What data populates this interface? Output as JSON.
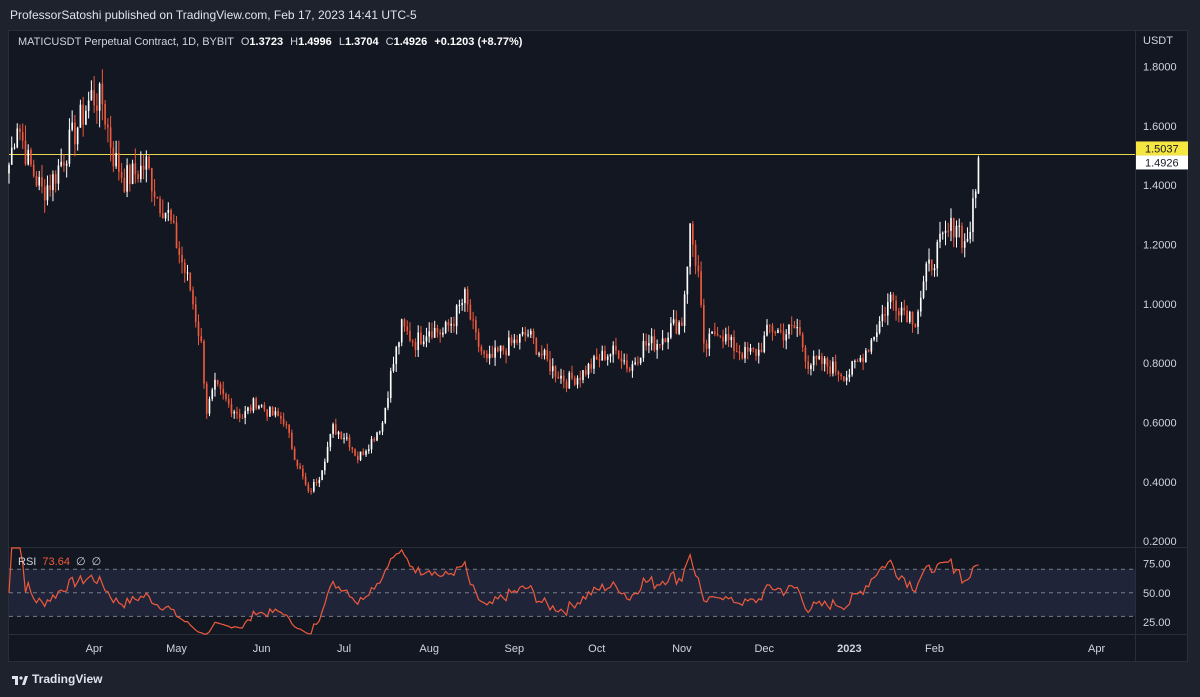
{
  "header": {
    "publisher_line": "ProfessorSatoshi published on TradingView.com, Feb 17, 2023 14:41 UTC-5"
  },
  "legend": {
    "symbol": "MATICUSDT Perpetual Contract, 1D, BYBIT",
    "open_label": "O",
    "open": "1.3723",
    "high_label": "H",
    "high": "1.4996",
    "low_label": "L",
    "low": "1.3704",
    "close_label": "C",
    "close": "1.4926",
    "change": "+0.1203 (+8.77%)"
  },
  "rsi_legend": {
    "name": "RSI",
    "value": "73.64",
    "na1": "∅",
    "na2": "∅"
  },
  "footer": {
    "brand": "TradingView"
  },
  "colors": {
    "background": "#131722",
    "panel": "#1e222d",
    "up": "#ffffff",
    "down": "#f05a3c",
    "hline": "#e8d44d",
    "rsi_line": "#f05a3c",
    "rsi_band": "#2a2d4a",
    "grid": "#2a2e39"
  },
  "chart_data": {
    "type": "candlestick",
    "price_axis": {
      "currency": "USDT",
      "ticks": [
        "1.8000",
        "1.6000",
        "1.4000",
        "1.2000",
        "1.0000",
        "0.8000",
        "0.6000",
        "0.4000",
        "0.2000"
      ],
      "range": [
        0.18,
        1.92
      ],
      "price_labels": [
        {
          "value": 1.5037,
          "label": "1.5037",
          "style": "yellow"
        },
        {
          "value": 1.4926,
          "label": "1.4926",
          "style": "white"
        }
      ]
    },
    "horizontal_line": 1.5037,
    "time_axis": {
      "labels": [
        "Apr",
        "May",
        "Jun",
        "Jul",
        "Aug",
        "Sep",
        "Oct",
        "Nov",
        "Dec",
        "2023",
        "Feb",
        "Apr"
      ],
      "label_dates": [
        "2022-04-01",
        "2022-05-01",
        "2022-06-01",
        "2022-07-01",
        "2022-08-01",
        "2022-09-01",
        "2022-10-01",
        "2022-11-01",
        "2022-12-01",
        "2023-01-01",
        "2023-02-01",
        "2023-04-01"
      ],
      "start_date": "2022-03-01",
      "end_date": "2023-04-15"
    },
    "price_keypoints": [
      {
        "date": "2022-03-01",
        "close": 1.47
      },
      {
        "date": "2022-03-04",
        "close": 1.62
      },
      {
        "date": "2022-03-08",
        "close": 1.48
      },
      {
        "date": "2022-03-13",
        "close": 1.38
      },
      {
        "date": "2022-03-17",
        "close": 1.42
      },
      {
        "date": "2022-03-22",
        "close": 1.52
      },
      {
        "date": "2022-03-27",
        "close": 1.62
      },
      {
        "date": "2022-03-31",
        "close": 1.7
      },
      {
        "date": "2022-04-04",
        "close": 1.68
      },
      {
        "date": "2022-04-08",
        "close": 1.5
      },
      {
        "date": "2022-04-12",
        "close": 1.42
      },
      {
        "date": "2022-04-16",
        "close": 1.44
      },
      {
        "date": "2022-04-20",
        "close": 1.47
      },
      {
        "date": "2022-04-24",
        "close": 1.36
      },
      {
        "date": "2022-04-28",
        "close": 1.3
      },
      {
        "date": "2022-05-02",
        "close": 1.17
      },
      {
        "date": "2022-05-06",
        "close": 1.05
      },
      {
        "date": "2022-05-10",
        "close": 0.86
      },
      {
        "date": "2022-05-12",
        "close": 0.64
      },
      {
        "date": "2022-05-15",
        "close": 0.72
      },
      {
        "date": "2022-05-20",
        "close": 0.66
      },
      {
        "date": "2022-05-25",
        "close": 0.62
      },
      {
        "date": "2022-05-30",
        "close": 0.67
      },
      {
        "date": "2022-06-04",
        "close": 0.63
      },
      {
        "date": "2022-06-09",
        "close": 0.61
      },
      {
        "date": "2022-06-13",
        "close": 0.49
      },
      {
        "date": "2022-06-18",
        "close": 0.36
      },
      {
        "date": "2022-06-22",
        "close": 0.42
      },
      {
        "date": "2022-06-27",
        "close": 0.58
      },
      {
        "date": "2022-07-02",
        "close": 0.55
      },
      {
        "date": "2022-07-06",
        "close": 0.48
      },
      {
        "date": "2022-07-11",
        "close": 0.54
      },
      {
        "date": "2022-07-15",
        "close": 0.6
      },
      {
        "date": "2022-07-18",
        "close": 0.76
      },
      {
        "date": "2022-07-22",
        "close": 0.92
      },
      {
        "date": "2022-07-27",
        "close": 0.87
      },
      {
        "date": "2022-08-01",
        "close": 0.92
      },
      {
        "date": "2022-08-06",
        "close": 0.9
      },
      {
        "date": "2022-08-10",
        "close": 0.95
      },
      {
        "date": "2022-08-14",
        "close": 1.02
      },
      {
        "date": "2022-08-18",
        "close": 0.88
      },
      {
        "date": "2022-08-22",
        "close": 0.8
      },
      {
        "date": "2022-08-27",
        "close": 0.84
      },
      {
        "date": "2022-09-01",
        "close": 0.87
      },
      {
        "date": "2022-09-06",
        "close": 0.9
      },
      {
        "date": "2022-09-10",
        "close": 0.84
      },
      {
        "date": "2022-09-15",
        "close": 0.78
      },
      {
        "date": "2022-09-20",
        "close": 0.74
      },
      {
        "date": "2022-09-25",
        "close": 0.76
      },
      {
        "date": "2022-09-30",
        "close": 0.8
      },
      {
        "date": "2022-10-04",
        "close": 0.83
      },
      {
        "date": "2022-10-09",
        "close": 0.84
      },
      {
        "date": "2022-10-13",
        "close": 0.78
      },
      {
        "date": "2022-10-18",
        "close": 0.86
      },
      {
        "date": "2022-10-23",
        "close": 0.87
      },
      {
        "date": "2022-10-28",
        "close": 0.92
      },
      {
        "date": "2022-11-01",
        "close": 0.94
      },
      {
        "date": "2022-11-04",
        "close": 1.25
      },
      {
        "date": "2022-11-07",
        "close": 1.1
      },
      {
        "date": "2022-11-09",
        "close": 0.84
      },
      {
        "date": "2022-11-14",
        "close": 0.92
      },
      {
        "date": "2022-11-19",
        "close": 0.86
      },
      {
        "date": "2022-11-24",
        "close": 0.83
      },
      {
        "date": "2022-11-29",
        "close": 0.84
      },
      {
        "date": "2022-12-03",
        "close": 0.92
      },
      {
        "date": "2022-12-08",
        "close": 0.9
      },
      {
        "date": "2022-12-13",
        "close": 0.92
      },
      {
        "date": "2022-12-17",
        "close": 0.8
      },
      {
        "date": "2022-12-22",
        "close": 0.8
      },
      {
        "date": "2022-12-27",
        "close": 0.78
      },
      {
        "date": "2022-12-31",
        "close": 0.76
      },
      {
        "date": "2023-01-04",
        "close": 0.8
      },
      {
        "date": "2023-01-08",
        "close": 0.86
      },
      {
        "date": "2023-01-12",
        "close": 0.94
      },
      {
        "date": "2023-01-16",
        "close": 1.02
      },
      {
        "date": "2023-01-21",
        "close": 0.98
      },
      {
        "date": "2023-01-25",
        "close": 0.95
      },
      {
        "date": "2023-01-29",
        "close": 1.1
      },
      {
        "date": "2023-02-02",
        "close": 1.18
      },
      {
        "date": "2023-02-06",
        "close": 1.24
      },
      {
        "date": "2023-02-09",
        "close": 1.28
      },
      {
        "date": "2023-02-12",
        "close": 1.2
      },
      {
        "date": "2023-02-14",
        "close": 1.26
      },
      {
        "date": "2023-02-16",
        "close": 1.37
      },
      {
        "date": "2023-02-17",
        "close": 1.4926
      }
    ],
    "rsi": {
      "axis_ticks": [
        "75.00",
        "50.00",
        "25.00"
      ],
      "range": [
        15,
        88
      ],
      "upper_band": 70,
      "middle": 50,
      "lower_band": 30,
      "current": 73.64
    }
  }
}
